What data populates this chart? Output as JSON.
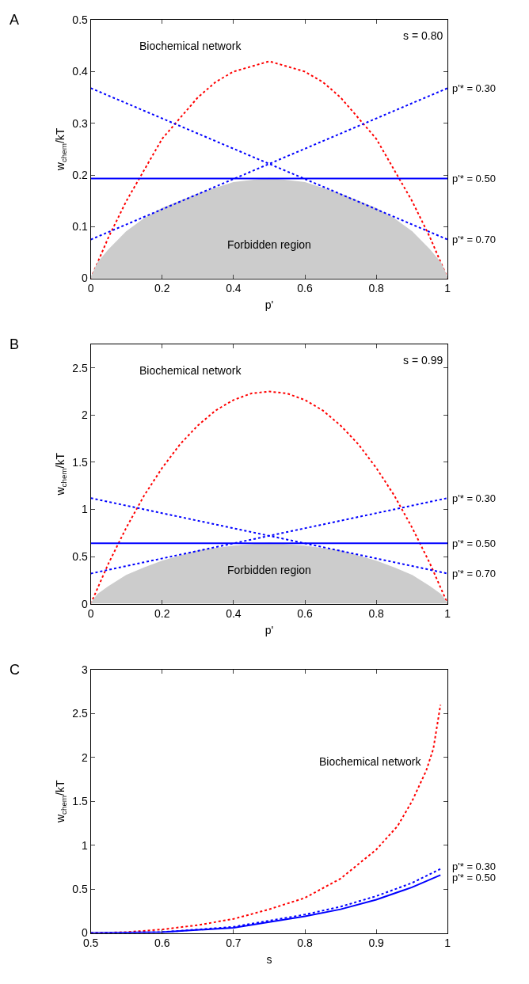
{
  "chart_data": [
    {
      "type": "line",
      "title": "A",
      "xlabel": "p'",
      "ylabel": "w$_{chem}$/kT",
      "annotations": [
        "s = 0.80"
      ],
      "xlim": [
        0,
        1
      ],
      "ylim": [
        0,
        0.5
      ],
      "xticks": [
        0,
        0.2,
        0.4,
        0.6,
        0.8,
        1
      ],
      "yticks": [
        0,
        0.1,
        0.2,
        0.3,
        0.4,
        0.5
      ],
      "series": [
        {
          "name": "Biochemical network",
          "color": "#ff0000",
          "line_style": "dotted",
          "x": [
            0,
            0.05,
            0.1,
            0.15,
            0.2,
            0.25,
            0.3,
            0.35,
            0.4,
            0.45,
            0.5,
            0.55,
            0.6,
            0.65,
            0.7,
            0.75,
            0.8,
            0.85,
            0.9,
            0.95,
            1
          ],
          "values": [
            0,
            0.08,
            0.15,
            0.21,
            0.27,
            0.31,
            0.35,
            0.38,
            0.4,
            0.41,
            0.42,
            0.41,
            0.4,
            0.38,
            0.35,
            0.31,
            0.27,
            0.21,
            0.15,
            0.08,
            0
          ]
        },
        {
          "name": "Forbidden region",
          "type": "area",
          "color": "#cccccc",
          "x": [
            0,
            0.02,
            0.05,
            0.1,
            0.15,
            0.2,
            0.3,
            0.4,
            0.5,
            0.6,
            0.7,
            0.8,
            0.85,
            0.9,
            0.95,
            0.98,
            1
          ],
          "values": [
            0,
            0.03,
            0.055,
            0.09,
            0.115,
            0.135,
            0.163,
            0.185,
            0.193,
            0.185,
            0.163,
            0.135,
            0.115,
            0.09,
            0.055,
            0.03,
            0
          ]
        },
        {
          "name": "p'* = 0.30",
          "color": "#0000ff",
          "line_style": "dotted",
          "x": [
            0,
            1
          ],
          "values": [
            0.075,
            0.368
          ]
        },
        {
          "name": "p'* = 0.50",
          "color": "#0000ff",
          "line_style": "solid",
          "x": [
            0,
            1
          ],
          "values": [
            0.193,
            0.193
          ]
        },
        {
          "name": "p'* = 0.70",
          "color": "#0000ff",
          "line_style": "dotted",
          "x": [
            0,
            1
          ],
          "values": [
            0.368,
            0.075
          ]
        }
      ]
    },
    {
      "type": "line",
      "title": "B",
      "xlabel": "p'",
      "ylabel": "w$_{chem}$/kT",
      "annotations": [
        "s = 0.99"
      ],
      "xlim": [
        0,
        1
      ],
      "ylim": [
        0,
        2.75
      ],
      "xticks": [
        0,
        0.2,
        0.4,
        0.6,
        0.8,
        1
      ],
      "yticks": [
        0,
        0.5,
        1,
        1.5,
        2,
        2.5
      ],
      "series": [
        {
          "name": "Biochemical network",
          "color": "#ff0000",
          "line_style": "dotted",
          "x": [
            0,
            0.05,
            0.1,
            0.15,
            0.2,
            0.25,
            0.3,
            0.35,
            0.4,
            0.45,
            0.5,
            0.55,
            0.6,
            0.65,
            0.7,
            0.75,
            0.8,
            0.85,
            0.9,
            0.95,
            1
          ],
          "values": [
            0,
            0.43,
            0.81,
            1.15,
            1.44,
            1.69,
            1.89,
            2.05,
            2.16,
            2.23,
            2.25,
            2.23,
            2.16,
            2.05,
            1.89,
            1.69,
            1.44,
            1.15,
            0.81,
            0.43,
            0
          ]
        },
        {
          "name": "Forbidden region",
          "type": "area",
          "color": "#cccccc",
          "x": [
            0,
            0.02,
            0.05,
            0.1,
            0.15,
            0.2,
            0.3,
            0.4,
            0.5,
            0.6,
            0.7,
            0.8,
            0.85,
            0.9,
            0.95,
            0.98,
            1
          ],
          "values": [
            0,
            0.1,
            0.18,
            0.3,
            0.38,
            0.45,
            0.56,
            0.61,
            0.64,
            0.61,
            0.56,
            0.45,
            0.38,
            0.3,
            0.18,
            0.1,
            0
          ]
        },
        {
          "name": "p'* = 0.30",
          "color": "#0000ff",
          "line_style": "dotted",
          "x": [
            0,
            1
          ],
          "values": [
            0.32,
            1.12
          ]
        },
        {
          "name": "p'* = 0.50",
          "color": "#0000ff",
          "line_style": "solid",
          "x": [
            0,
            1
          ],
          "values": [
            0.64,
            0.64
          ]
        },
        {
          "name": "p'* = 0.70",
          "color": "#0000ff",
          "line_style": "dotted",
          "x": [
            0,
            1
          ],
          "values": [
            1.12,
            0.32
          ]
        }
      ]
    },
    {
      "type": "line",
      "title": "C",
      "xlabel": "s",
      "ylabel": "w$_{chem}$/kT",
      "xlim": [
        0.5,
        1
      ],
      "ylim": [
        0,
        3
      ],
      "xticks": [
        0.5,
        0.6,
        0.7,
        0.8,
        0.9,
        1
      ],
      "yticks": [
        0,
        0.5,
        1,
        1.5,
        2,
        2.5,
        3
      ],
      "series": [
        {
          "name": "Biochemical network",
          "color": "#ff0000",
          "line_style": "dotted",
          "x": [
            0.5,
            0.55,
            0.6,
            0.65,
            0.7,
            0.75,
            0.8,
            0.85,
            0.9,
            0.93,
            0.95,
            0.97,
            0.98,
            0.99
          ],
          "values": [
            0,
            0.01,
            0.04,
            0.09,
            0.16,
            0.27,
            0.4,
            0.62,
            0.95,
            1.22,
            1.5,
            1.85,
            2.1,
            2.6
          ]
        },
        {
          "name": "p'* = 0.30",
          "color": "#0000ff",
          "line_style": "dotted",
          "x": [
            0.5,
            0.6,
            0.7,
            0.8,
            0.85,
            0.9,
            0.95,
            0.99
          ],
          "values": [
            0,
            0.01,
            0.07,
            0.21,
            0.3,
            0.42,
            0.57,
            0.73
          ]
        },
        {
          "name": "p'* = 0.50",
          "color": "#0000ff",
          "line_style": "solid",
          "x": [
            0.5,
            0.6,
            0.7,
            0.8,
            0.85,
            0.9,
            0.95,
            0.99
          ],
          "values": [
            0,
            0.01,
            0.06,
            0.19,
            0.27,
            0.38,
            0.52,
            0.66
          ]
        }
      ]
    }
  ]
}
